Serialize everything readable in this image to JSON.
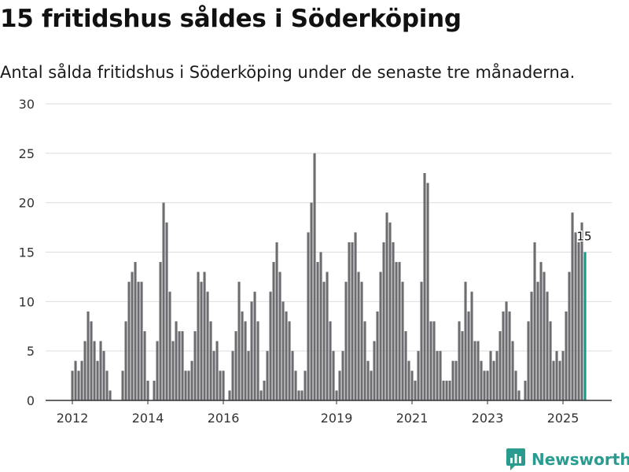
{
  "title": "15 fritidshus såldes i Söderköping",
  "subtitle": "Antal sålda fritidshus i Söderköping under de senaste tre månaderna.",
  "brand": {
    "name": "Newsworthy",
    "icon": "chart-logo-icon",
    "color": "#2a9b8f"
  },
  "colors": {
    "bar": "#6d6c70",
    "highlight": "#1a9488",
    "grid": "#dddddd",
    "axis": "#333333"
  },
  "chart_data": {
    "type": "bar",
    "title": "15 fritidshus såldes i Söderköping",
    "xlabel": "",
    "ylabel": "",
    "ylim": [
      0,
      30
    ],
    "yticks": [
      0,
      5,
      10,
      15,
      20,
      25,
      30
    ],
    "grid": true,
    "x_start": "2012-01",
    "x_end": "2025-07",
    "xtick_labels": [
      {
        "label": "2012",
        "index": 0
      },
      {
        "label": "2014",
        "index": 24
      },
      {
        "label": "2016",
        "index": 48
      },
      {
        "label": "2019",
        "index": 84
      },
      {
        "label": "2021",
        "index": 108
      },
      {
        "label": "2023",
        "index": 132
      },
      {
        "label": "2025",
        "index": 156
      }
    ],
    "values": [
      3,
      4,
      3,
      4,
      6,
      9,
      8,
      6,
      4,
      6,
      5,
      3,
      1,
      0,
      0,
      0,
      3,
      8,
      12,
      13,
      14,
      12,
      12,
      7,
      2,
      0,
      2,
      6,
      14,
      20,
      18,
      11,
      6,
      8,
      7,
      7,
      3,
      3,
      4,
      7,
      13,
      12,
      13,
      11,
      8,
      5,
      6,
      3,
      3,
      0,
      1,
      5,
      7,
      12,
      9,
      8,
      5,
      10,
      11,
      8,
      1,
      2,
      5,
      11,
      14,
      16,
      13,
      10,
      9,
      8,
      5,
      3,
      1,
      1,
      3,
      17,
      20,
      25,
      14,
      15,
      12,
      13,
      8,
      5,
      1,
      3,
      5,
      12,
      16,
      16,
      17,
      13,
      12,
      8,
      4,
      3,
      6,
      9,
      13,
      16,
      19,
      18,
      16,
      14,
      14,
      12,
      7,
      4,
      3,
      2,
      5,
      12,
      23,
      22,
      8,
      8,
      5,
      5,
      2,
      2,
      2,
      4,
      4,
      8,
      7,
      12,
      9,
      11,
      6,
      6,
      4,
      3,
      3,
      5,
      4,
      5,
      7,
      9,
      10,
      9,
      6,
      3,
      1,
      0,
      2,
      8,
      11,
      16,
      12,
      14,
      13,
      11,
      8,
      4,
      5,
      4,
      5,
      9,
      13,
      19,
      17,
      16,
      18,
      15
    ],
    "highlight_index": 163,
    "highlight_label": "15"
  }
}
